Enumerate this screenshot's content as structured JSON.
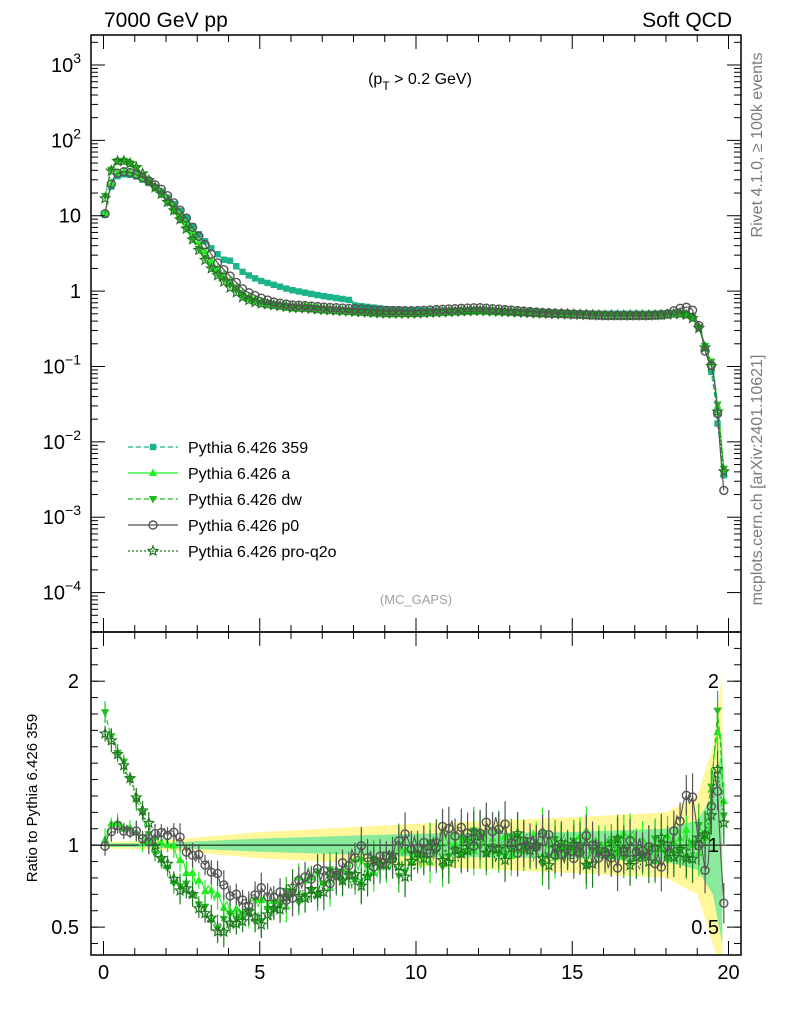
{
  "header": {
    "left": "7000 GeV pp",
    "right": "Soft QCD"
  },
  "side": {
    "top": "Rivet 4.1.0, ≥ 100k events",
    "bottom": "mcplots.cern.ch [arXiv:2401.10621]"
  },
  "cut_label": "(p_T > 0.2 GeV)",
  "analysis_label": "(MC_GAPS)",
  "ratio_ylabel": "Ratio to Pythia 6.426 359",
  "colors": {
    "s359": "#1bb38a",
    "a": "#22ee22",
    "dw": "#22bb22",
    "p0": "#555555",
    "proq2o": "#1f7a1f",
    "band_outer": "#fff799",
    "band_inner": "#88ea9a"
  },
  "chart_data": [
    {
      "type": "line",
      "panel": "main",
      "yscale": "log",
      "xlim": [
        -0.4,
        20.4
      ],
      "ylim": [
        3e-05,
        2500
      ],
      "yticks": [
        {
          "v": 1000,
          "label": "10",
          "sup": "3"
        },
        {
          "v": 100,
          "label": "10",
          "sup": "2"
        },
        {
          "v": 10,
          "label": "10",
          "sup": ""
        },
        {
          "v": 1,
          "label": "1",
          "sup": ""
        },
        {
          "v": 0.1,
          "label": "10",
          "sup": "−1"
        },
        {
          "v": 0.01,
          "label": "10",
          "sup": "−2"
        },
        {
          "v": 0.001,
          "label": "10",
          "sup": "−3"
        },
        {
          "v": 0.0001,
          "label": "10",
          "sup": "−4"
        }
      ],
      "shape_knots": [
        [
          0.0,
          8
        ],
        [
          0.2,
          22
        ],
        [
          0.4,
          33
        ],
        [
          0.7,
          36
        ],
        [
          1.0,
          34
        ],
        [
          1.4,
          28
        ],
        [
          1.8,
          22
        ],
        [
          2.2,
          15
        ],
        [
          2.6,
          10
        ],
        [
          3.0,
          6
        ],
        [
          3.5,
          3.5
        ],
        [
          4.0,
          2.3
        ],
        [
          4.5,
          1.5
        ],
        [
          5.0,
          1.2
        ],
        [
          6.0,
          0.9
        ],
        [
          7.0,
          0.75
        ],
        [
          8.0,
          0.65
        ],
        [
          9.0,
          0.58
        ],
        [
          10.0,
          0.55
        ],
        [
          12.0,
          0.55
        ],
        [
          14.0,
          0.52
        ],
        [
          16.0,
          0.5
        ],
        [
          17.5,
          0.5
        ],
        [
          18.4,
          0.52
        ],
        [
          18.8,
          0.48
        ],
        [
          19.1,
          0.3
        ],
        [
          19.3,
          0.15
        ],
        [
          19.5,
          0.07
        ],
        [
          19.7,
          0.011
        ],
        [
          19.85,
          0.0036
        ]
      ],
      "series": [
        {
          "name": "Pythia 6.426 359",
          "key": "s359",
          "marker": "square",
          "dash": "5,3",
          "ratio_knots": [
            [
              0,
              1
            ],
            [
              20,
              1
            ]
          ]
        },
        {
          "name": "Pythia 6.426 a",
          "key": "a",
          "marker": "triangle-up",
          "dash": "",
          "ratio_knots": [
            [
              0.0,
              1.05
            ],
            [
              0.3,
              1.12
            ],
            [
              1.0,
              1.08
            ],
            [
              2.0,
              1.0
            ],
            [
              2.8,
              0.85
            ],
            [
              3.6,
              0.65
            ],
            [
              4.5,
              0.6
            ],
            [
              5.5,
              0.65
            ],
            [
              6.5,
              0.78
            ],
            [
              8.0,
              0.85
            ],
            [
              10.0,
              0.95
            ],
            [
              12.0,
              1.05
            ],
            [
              14.0,
              1.0
            ],
            [
              16.0,
              1.0
            ],
            [
              18.0,
              1.0
            ],
            [
              19.3,
              1.05
            ],
            [
              19.7,
              1.8
            ],
            [
              19.9,
              1.0
            ]
          ]
        },
        {
          "name": "Pythia 6.426 dw",
          "key": "dw",
          "marker": "triangle-down",
          "dash": "5,3",
          "ratio_knots": [
            [
              0.0,
              1.8
            ],
            [
              0.3,
              1.65
            ],
            [
              0.8,
              1.45
            ],
            [
              1.5,
              1.0
            ],
            [
              2.5,
              0.75
            ],
            [
              3.5,
              0.55
            ],
            [
              4.5,
              0.55
            ],
            [
              5.5,
              0.62
            ],
            [
              6.5,
              0.72
            ],
            [
              8.0,
              0.82
            ],
            [
              10.0,
              0.92
            ],
            [
              12.0,
              1.0
            ],
            [
              14.0,
              0.97
            ],
            [
              16.0,
              0.97
            ],
            [
              18.0,
              0.95
            ],
            [
              19.3,
              1.05
            ],
            [
              19.7,
              1.9
            ],
            [
              19.9,
              1.0
            ]
          ]
        },
        {
          "name": "Pythia 6.426 p0",
          "key": "p0",
          "marker": "circle",
          "dash": "",
          "ratio_knots": [
            [
              0.0,
              1.02
            ],
            [
              0.3,
              1.1
            ],
            [
              1.0,
              1.06
            ],
            [
              2.0,
              1.07
            ],
            [
              2.6,
              1.0
            ],
            [
              3.2,
              0.92
            ],
            [
              3.7,
              0.75
            ],
            [
              4.5,
              0.68
            ],
            [
              5.5,
              0.68
            ],
            [
              6.5,
              0.78
            ],
            [
              8.0,
              0.9
            ],
            [
              10.0,
              1.0
            ],
            [
              12.0,
              1.1
            ],
            [
              14.0,
              1.0
            ],
            [
              16.0,
              0.95
            ],
            [
              18.0,
              0.95
            ],
            [
              18.8,
              1.3
            ],
            [
              19.3,
              0.85
            ],
            [
              19.6,
              1.6
            ],
            [
              19.8,
              0.63
            ]
          ]
        },
        {
          "name": "Pythia 6.426 pro-q2o",
          "key": "proq2o",
          "marker": "star",
          "dash": "2,2",
          "ratio_knots": [
            [
              0.0,
              1.65
            ],
            [
              0.4,
              1.6
            ],
            [
              1.0,
              1.35
            ],
            [
              1.6,
              1.0
            ],
            [
              2.4,
              0.78
            ],
            [
              3.3,
              0.55
            ],
            [
              4.0,
              0.5
            ],
            [
              4.8,
              0.55
            ],
            [
              5.5,
              0.62
            ],
            [
              6.5,
              0.72
            ],
            [
              8.0,
              0.82
            ],
            [
              10.0,
              0.92
            ],
            [
              12.0,
              1.0
            ],
            [
              14.0,
              0.97
            ],
            [
              16.0,
              0.95
            ],
            [
              18.0,
              0.95
            ],
            [
              19.3,
              1.0
            ],
            [
              19.7,
              1.5
            ],
            [
              19.9,
              1.0
            ]
          ]
        }
      ]
    },
    {
      "type": "line",
      "panel": "ratio",
      "xlim": [
        -0.4,
        20.4
      ],
      "ylim": [
        0.33,
        2.3
      ],
      "xticks": [
        0,
        5,
        10,
        15,
        20
      ],
      "yticks": [
        0.5,
        1,
        2
      ],
      "band_outer_knots": [
        [
          0,
          0.02
        ],
        [
          2,
          0.03
        ],
        [
          5,
          0.08
        ],
        [
          10,
          0.13
        ],
        [
          15,
          0.17
        ],
        [
          18,
          0.2
        ],
        [
          19,
          0.3
        ],
        [
          19.5,
          0.6
        ],
        [
          19.9,
          1.2
        ]
      ],
      "band_inner_knots": [
        [
          0,
          0.01
        ],
        [
          2,
          0.015
        ],
        [
          5,
          0.04
        ],
        [
          10,
          0.07
        ],
        [
          15,
          0.08
        ],
        [
          18,
          0.1
        ],
        [
          19,
          0.15
        ],
        [
          19.5,
          0.3
        ],
        [
          19.9,
          0.7
        ]
      ]
    }
  ]
}
